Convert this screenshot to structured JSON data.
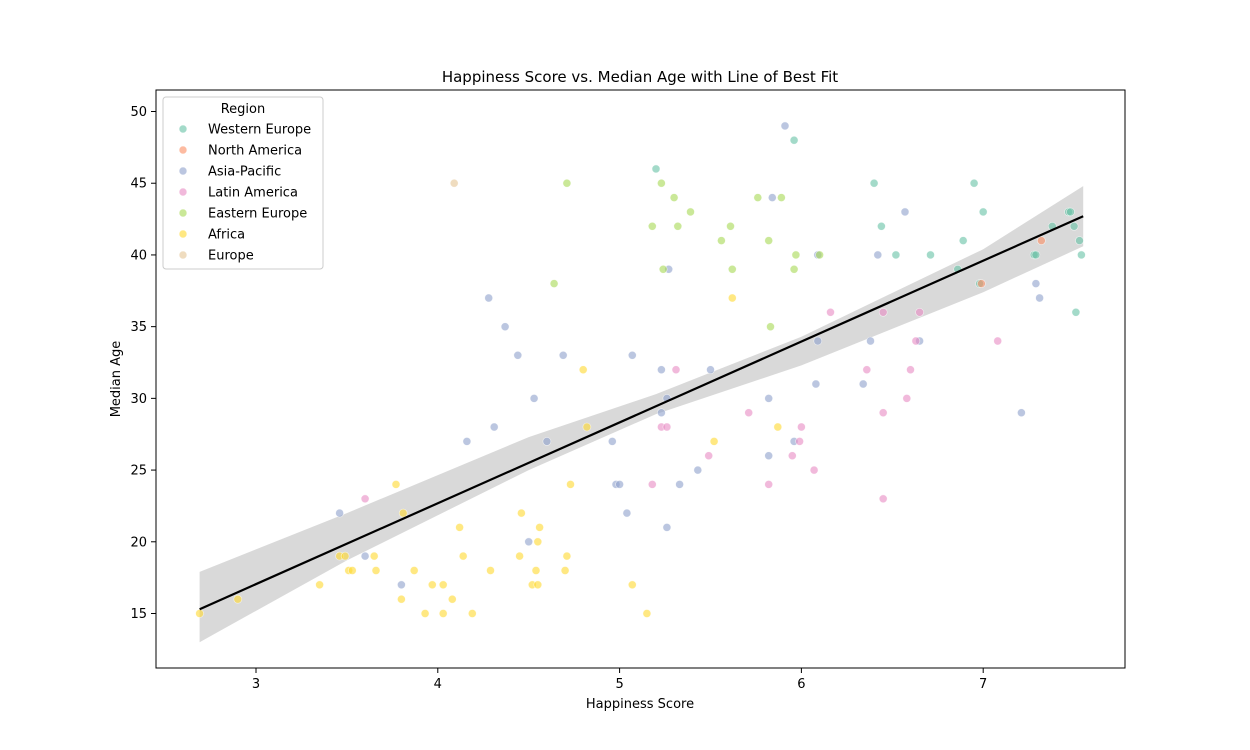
{
  "chart_data": {
    "type": "scatter",
    "title": "Happiness Score vs. Median Age with Line of Best Fit",
    "xlabel": "Happiness Score",
    "ylabel": "Median Age",
    "xlim": [
      2.45,
      7.78
    ],
    "ylim": [
      11.2,
      51.5
    ],
    "xticks": [
      3,
      4,
      5,
      6,
      7
    ],
    "yticks": [
      15,
      20,
      25,
      30,
      35,
      40,
      45,
      50
    ],
    "grid": false,
    "legend": {
      "title": "Region",
      "position": "top-left"
    },
    "series": [
      {
        "name": "Western Europe",
        "color": "#66c2a5",
        "points": [
          [
            5.2,
            46
          ],
          [
            5.96,
            48
          ],
          [
            6.4,
            45
          ],
          [
            6.95,
            45
          ],
          [
            6.44,
            42
          ],
          [
            7.0,
            43
          ],
          [
            6.52,
            40
          ],
          [
            6.71,
            40
          ],
          [
            6.89,
            41
          ],
          [
            6.86,
            39
          ],
          [
            6.98,
            38
          ],
          [
            7.28,
            40
          ],
          [
            7.29,
            40
          ],
          [
            7.38,
            42
          ],
          [
            7.47,
            43
          ],
          [
            7.48,
            43
          ],
          [
            7.5,
            42
          ],
          [
            7.53,
            41
          ],
          [
            7.54,
            40
          ],
          [
            7.51,
            36
          ]
        ]
      },
      {
        "name": "North America",
        "color": "#fc8d62",
        "points": [
          [
            7.32,
            41
          ],
          [
            6.99,
            38
          ]
        ]
      },
      {
        "name": "Asia-Pacific",
        "color": "#8da0cb",
        "points": [
          [
            5.91,
            49
          ],
          [
            5.84,
            44
          ],
          [
            6.57,
            43
          ],
          [
            6.42,
            40
          ],
          [
            6.09,
            40
          ],
          [
            5.27,
            39
          ],
          [
            4.28,
            37
          ],
          [
            4.37,
            35
          ],
          [
            4.44,
            33
          ],
          [
            4.69,
            33
          ],
          [
            5.07,
            33
          ],
          [
            5.23,
            32
          ],
          [
            5.5,
            32
          ],
          [
            4.53,
            30
          ],
          [
            5.26,
            30
          ],
          [
            5.82,
            30
          ],
          [
            4.16,
            27
          ],
          [
            4.31,
            28
          ],
          [
            4.6,
            27
          ],
          [
            4.96,
            27
          ],
          [
            5.23,
            29
          ],
          [
            5.96,
            27
          ],
          [
            5.82,
            26
          ],
          [
            6.08,
            31
          ],
          [
            6.34,
            31
          ],
          [
            6.38,
            34
          ],
          [
            6.09,
            34
          ],
          [
            6.65,
            34
          ],
          [
            7.21,
            29
          ],
          [
            7.29,
            38
          ],
          [
            7.31,
            37
          ],
          [
            4.98,
            24
          ],
          [
            5.0,
            24
          ],
          [
            5.33,
            24
          ],
          [
            5.43,
            25
          ],
          [
            5.04,
            22
          ],
          [
            5.26,
            21
          ],
          [
            4.5,
            20
          ],
          [
            3.46,
            22
          ],
          [
            3.6,
            19
          ],
          [
            3.8,
            17
          ]
        ]
      },
      {
        "name": "Latin America",
        "color": "#e78ac3",
        "points": [
          [
            6.16,
            36
          ],
          [
            6.45,
            36
          ],
          [
            6.65,
            36
          ],
          [
            6.63,
            34
          ],
          [
            7.08,
            34
          ],
          [
            5.31,
            32
          ],
          [
            6.36,
            32
          ],
          [
            6.6,
            32
          ],
          [
            6.58,
            30
          ],
          [
            6.45,
            29
          ],
          [
            5.71,
            29
          ],
          [
            5.23,
            28
          ],
          [
            5.26,
            28
          ],
          [
            6.0,
            28
          ],
          [
            5.99,
            27
          ],
          [
            5.49,
            26
          ],
          [
            5.95,
            26
          ],
          [
            5.18,
            24
          ],
          [
            5.82,
            24
          ],
          [
            6.07,
            25
          ],
          [
            6.45,
            23
          ],
          [
            3.6,
            23
          ]
        ]
      },
      {
        "name": "Eastern Europe",
        "color": "#a6d854",
        "points": [
          [
            4.71,
            45
          ],
          [
            5.23,
            45
          ],
          [
            5.3,
            44
          ],
          [
            5.76,
            44
          ],
          [
            5.89,
            44
          ],
          [
            5.39,
            43
          ],
          [
            5.18,
            42
          ],
          [
            5.32,
            42
          ],
          [
            5.61,
            42
          ],
          [
            5.82,
            41
          ],
          [
            5.56,
            41
          ],
          [
            5.97,
            40
          ],
          [
            6.1,
            40
          ],
          [
            5.62,
            39
          ],
          [
            5.24,
            39
          ],
          [
            5.96,
            39
          ],
          [
            4.64,
            38
          ],
          [
            5.83,
            35
          ]
        ]
      },
      {
        "name": "Africa",
        "color": "#ffd92f",
        "points": [
          [
            5.62,
            37
          ],
          [
            4.8,
            32
          ],
          [
            4.82,
            28
          ],
          [
            5.87,
            28
          ],
          [
            5.52,
            27
          ],
          [
            3.77,
            24
          ],
          [
            4.73,
            24
          ],
          [
            3.81,
            22
          ],
          [
            4.46,
            22
          ],
          [
            4.12,
            21
          ],
          [
            4.56,
            21
          ],
          [
            4.55,
            20
          ],
          [
            3.46,
            19
          ],
          [
            3.49,
            19
          ],
          [
            3.65,
            19
          ],
          [
            4.14,
            19
          ],
          [
            4.45,
            19
          ],
          [
            4.71,
            19
          ],
          [
            3.51,
            18
          ],
          [
            3.53,
            18
          ],
          [
            3.66,
            18
          ],
          [
            3.87,
            18
          ],
          [
            4.29,
            18
          ],
          [
            4.54,
            18
          ],
          [
            4.7,
            18
          ],
          [
            3.35,
            17
          ],
          [
            3.97,
            17
          ],
          [
            4.03,
            17
          ],
          [
            4.52,
            17
          ],
          [
            4.55,
            17
          ],
          [
            5.07,
            17
          ],
          [
            2.9,
            16
          ],
          [
            3.8,
            16
          ],
          [
            4.08,
            16
          ],
          [
            2.69,
            15
          ],
          [
            3.93,
            15
          ],
          [
            4.03,
            15
          ],
          [
            4.19,
            15
          ],
          [
            5.15,
            15
          ]
        ]
      },
      {
        "name": "Europe",
        "color": "#e5c494",
        "points": [
          [
            4.09,
            45
          ]
        ]
      }
    ],
    "best_fit": {
      "color": "#000000",
      "line": [
        [
          2.69,
          15.3
        ],
        [
          7.55,
          42.7
        ]
      ],
      "ci_lower": [
        [
          2.69,
          13.0
        ],
        [
          3.5,
          18.7
        ],
        [
          4.5,
          25.0
        ],
        [
          5.2,
          28.9
        ],
        [
          6.0,
          32.3
        ],
        [
          7.0,
          37.4
        ],
        [
          7.55,
          40.6
        ]
      ],
      "ci_upper": [
        [
          2.69,
          17.9
        ],
        [
          3.5,
          22.0
        ],
        [
          4.5,
          27.3
        ],
        [
          5.2,
          30.3
        ],
        [
          6.0,
          34.3
        ],
        [
          7.0,
          40.4
        ],
        [
          7.55,
          44.8
        ]
      ],
      "ci_color": "#cfcfcf"
    }
  }
}
